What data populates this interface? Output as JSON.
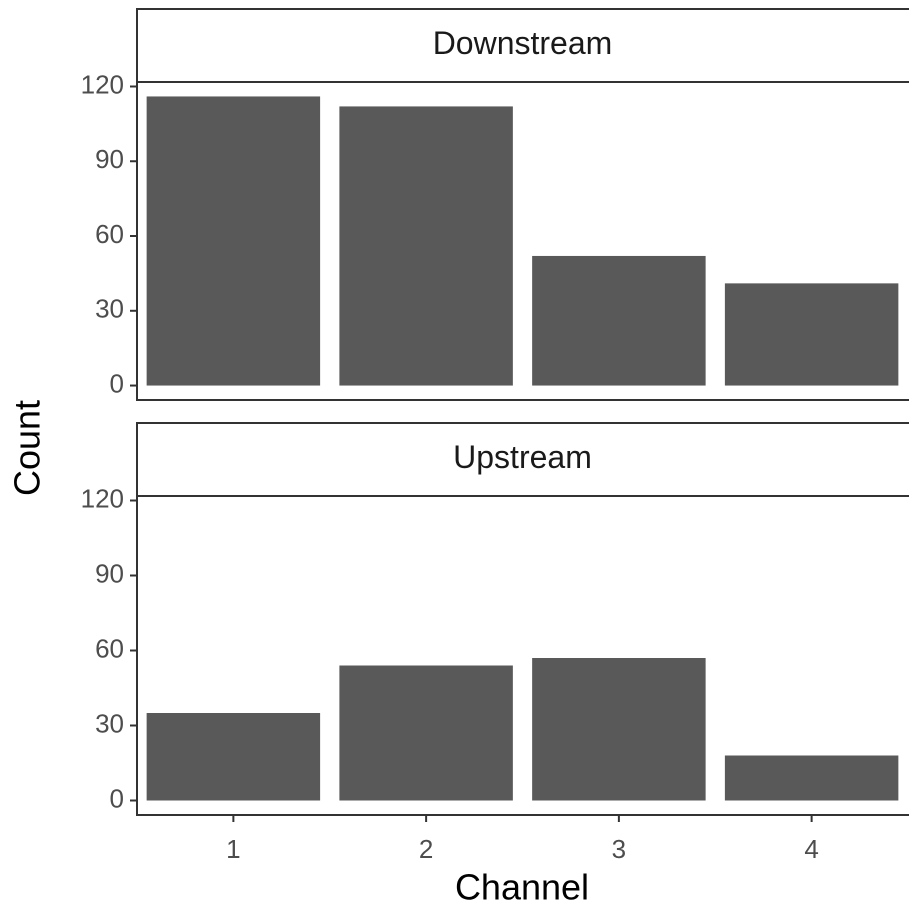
{
  "x_label": "Channel",
  "y_label": "Count",
  "chart_data": [
    {
      "type": "bar",
      "title": "Downstream",
      "categories": [
        "1",
        "2",
        "3",
        "4"
      ],
      "values": [
        116,
        112,
        52,
        41
      ],
      "color": "#595959",
      "ylim": [
        -5.8,
        121.8
      ],
      "yticks": [
        0,
        30,
        60,
        90,
        120
      ]
    },
    {
      "type": "bar",
      "title": "Upstream",
      "categories": [
        "1",
        "2",
        "3",
        "4"
      ],
      "values": [
        35,
        54,
        57,
        18
      ],
      "color": "#595959",
      "ylim": [
        -5.8,
        121.8
      ],
      "yticks": [
        0,
        30,
        60,
        90,
        120
      ]
    }
  ]
}
